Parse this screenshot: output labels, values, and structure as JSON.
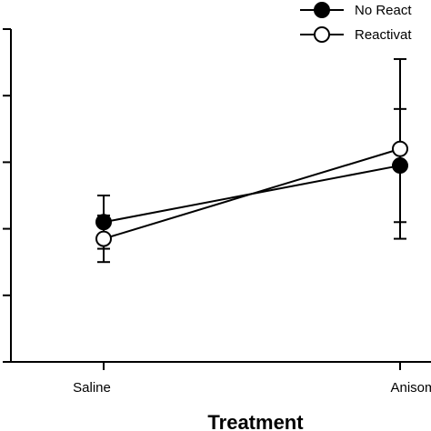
{
  "chart_data": {
    "type": "line",
    "xlabel": "Treatment",
    "ylabel": "",
    "categories": [
      "Saline",
      "Anisomyc"
    ],
    "ylim": [
      0,
      5
    ],
    "ytick_count": 6,
    "legend_position": "top-right",
    "series": [
      {
        "name": "No React",
        "marker": "filled-circle",
        "values": [
          2.1,
          2.95
        ],
        "errors": [
          0.4,
          0.85
        ]
      },
      {
        "name": "Reactivat",
        "marker": "open-circle",
        "values": [
          1.85,
          3.2
        ],
        "errors": [
          0.35,
          1.35
        ]
      }
    ],
    "colors": {
      "axis": "#000000",
      "filled_marker": "#000000",
      "open_marker": "#ffffff",
      "background": "#ffffff"
    }
  }
}
